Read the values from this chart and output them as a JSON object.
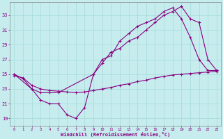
{
  "background_color": "#c6ecee",
  "line_color": "#880080",
  "grid_color": "#aadddd",
  "xlabel": "Windchill (Refroidissement éolien,°C)",
  "xlim": [
    -0.5,
    23.5
  ],
  "ylim": [
    18.0,
    34.8
  ],
  "yticks": [
    19,
    21,
    23,
    25,
    27,
    29,
    31,
    33
  ],
  "xticks": [
    0,
    1,
    2,
    3,
    4,
    5,
    6,
    7,
    8,
    9,
    10,
    11,
    12,
    13,
    14,
    15,
    16,
    17,
    18,
    19,
    20,
    21,
    22,
    23
  ],
  "line1_x": [
    0,
    1,
    2,
    3,
    4,
    5,
    6,
    7,
    8,
    9,
    10,
    11,
    12,
    13,
    14,
    15,
    16,
    17,
    18,
    19,
    20,
    21,
    22,
    23
  ],
  "line1_y": [
    25.0,
    24.4,
    23.0,
    21.5,
    21.0,
    21.0,
    19.5,
    19.0,
    20.5,
    25.0,
    27.0,
    27.5,
    29.5,
    30.5,
    31.5,
    32.0,
    32.5,
    33.5,
    34.0,
    32.5,
    30.0,
    27.0,
    25.5,
    25.5
  ],
  "line2_x": [
    0,
    2,
    3,
    4,
    5,
    9,
    10,
    11,
    12,
    13,
    14,
    15,
    16,
    17,
    18,
    19,
    20,
    21,
    22,
    23
  ],
  "line2_y": [
    25.0,
    23.0,
    22.5,
    22.5,
    22.5,
    25.0,
    26.5,
    28.0,
    28.5,
    29.5,
    30.0,
    31.0,
    32.0,
    33.0,
    33.5,
    34.2,
    32.5,
    32.0,
    27.0,
    25.5
  ],
  "line3_x": [
    0,
    1,
    2,
    3,
    4,
    5,
    6,
    7,
    8,
    9,
    10,
    11,
    12,
    13,
    14,
    15,
    16,
    17,
    18,
    19,
    20,
    21,
    22,
    23
  ],
  "line3_y": [
    24.8,
    24.5,
    23.5,
    23.0,
    22.8,
    22.7,
    22.6,
    22.5,
    22.6,
    22.8,
    23.0,
    23.2,
    23.5,
    23.7,
    24.0,
    24.2,
    24.5,
    24.7,
    24.9,
    25.0,
    25.1,
    25.2,
    25.3,
    25.4
  ]
}
